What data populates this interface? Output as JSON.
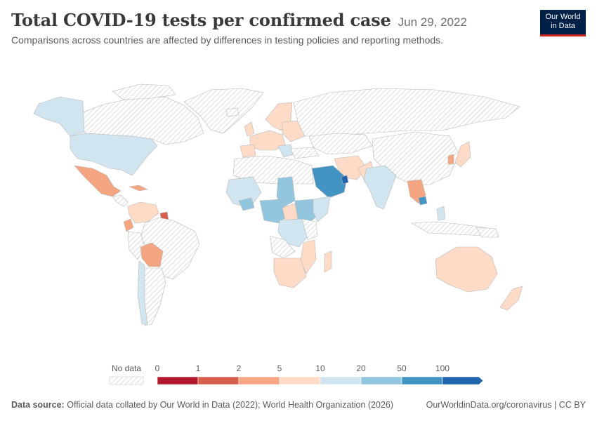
{
  "header": {
    "title": "Total COVID-19 tests per confirmed case",
    "date": "Jun 29, 2022",
    "subtitle": "Comparisons across countries are affected by differences in testing policies and reporting methods."
  },
  "logo": {
    "line1": "Our World",
    "line2": "in Data"
  },
  "legend": {
    "no_data_label": "No data",
    "ticks": [
      "0",
      "1",
      "2",
      "5",
      "10",
      "20",
      "50",
      "100"
    ],
    "colors": [
      "#b2182b",
      "#d6604d",
      "#f4a582",
      "#fddbc7",
      "#d1e5f0",
      "#92c5de",
      "#4393c3",
      "#2166ac"
    ],
    "no_data_fill": "hatch"
  },
  "footer": {
    "source_label": "Data source:",
    "source_text": "Official data collated by Our World in Data (2022); World Health Organization (2026)",
    "url_text": "OurWorldinData.org/coronavirus | CC BY"
  }
}
